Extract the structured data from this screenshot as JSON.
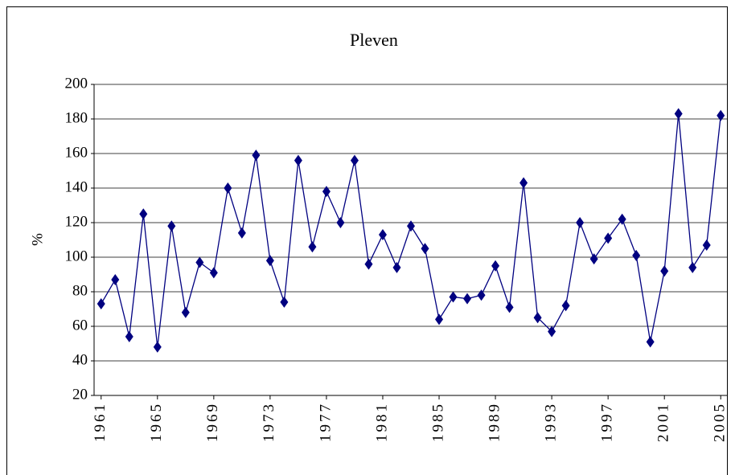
{
  "chart_data": {
    "type": "line",
    "title": "Pleven",
    "y_label": "%",
    "x": [
      1961,
      1962,
      1963,
      1964,
      1965,
      1966,
      1967,
      1968,
      1969,
      1970,
      1971,
      1972,
      1973,
      1974,
      1975,
      1976,
      1977,
      1978,
      1979,
      1980,
      1981,
      1982,
      1983,
      1984,
      1985,
      1986,
      1987,
      1988,
      1989,
      1990,
      1991,
      1992,
      1993,
      1994,
      1995,
      1996,
      1997,
      1998,
      1999,
      2000,
      2001,
      2002,
      2003,
      2004,
      2005
    ],
    "series": [
      {
        "name": "Pleven",
        "color": "#000080",
        "values": [
          73,
          87,
          54,
          125,
          48,
          118,
          68,
          97,
          91,
          140,
          114,
          159,
          98,
          74,
          156,
          106,
          138,
          120,
          156,
          96,
          113,
          94,
          118,
          105,
          64,
          77,
          76,
          78,
          95,
          71,
          143,
          65,
          57,
          72,
          120,
          99,
          111,
          122,
          101,
          51,
          92,
          183,
          94,
          107,
          182
        ]
      }
    ],
    "xlim": [
      1960.5,
      2005.5
    ],
    "xticks": [
      1961,
      1965,
      1969,
      1973,
      1977,
      1981,
      1985,
      1989,
      1993,
      1997,
      2001,
      2005
    ],
    "ylim": [
      20,
      200
    ],
    "yticks": [
      20,
      40,
      60,
      80,
      100,
      120,
      140,
      160,
      180,
      200
    ],
    "grid": true
  }
}
